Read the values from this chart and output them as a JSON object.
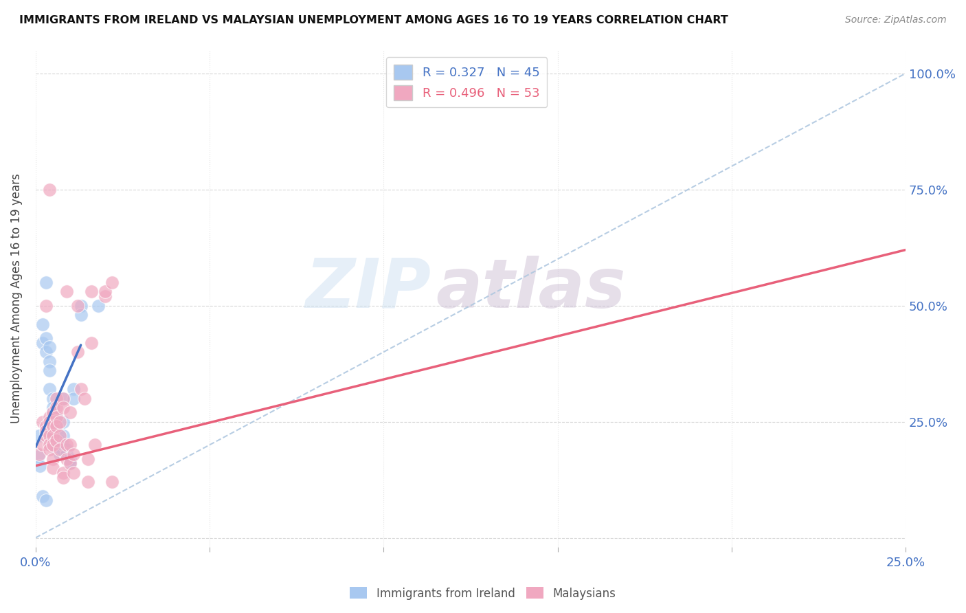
{
  "title": "IMMIGRANTS FROM IRELAND VS MALAYSIAN UNEMPLOYMENT AMONG AGES 16 TO 19 YEARS CORRELATION CHART",
  "source": "Source: ZipAtlas.com",
  "ylabel": "Unemployment Among Ages 16 to 19 years",
  "xlim": [
    0.0,
    0.25
  ],
  "ylim": [
    -0.02,
    1.05
  ],
  "xticks": [
    0.0,
    0.05,
    0.1,
    0.15,
    0.2,
    0.25
  ],
  "yticks": [
    0.0,
    0.25,
    0.5,
    0.75,
    1.0
  ],
  "xtick_labels": [
    "0.0%",
    "",
    "",
    "",
    "",
    "25.0%"
  ],
  "ytick_labels_right": [
    "",
    "25.0%",
    "50.0%",
    "75.0%",
    "100.0%"
  ],
  "blue_R": "0.327",
  "blue_N": "45",
  "pink_R": "0.496",
  "pink_N": "53",
  "blue_color": "#a8c8f0",
  "pink_color": "#f0a8c0",
  "blue_line_color": "#4472c4",
  "pink_line_color": "#e8607a",
  "dashed_line_color": "#b0c8e0",
  "blue_scatter": [
    [
      0.0008,
      0.175
    ],
    [
      0.001,
      0.22
    ],
    [
      0.0012,
      0.155
    ],
    [
      0.002,
      0.42
    ],
    [
      0.002,
      0.46
    ],
    [
      0.002,
      0.09
    ],
    [
      0.003,
      0.55
    ],
    [
      0.003,
      0.43
    ],
    [
      0.003,
      0.4
    ],
    [
      0.003,
      0.08
    ],
    [
      0.004,
      0.41
    ],
    [
      0.004,
      0.38
    ],
    [
      0.004,
      0.36
    ],
    [
      0.004,
      0.32
    ],
    [
      0.005,
      0.3
    ],
    [
      0.005,
      0.28
    ],
    [
      0.005,
      0.27
    ],
    [
      0.005,
      0.25
    ],
    [
      0.005,
      0.24
    ],
    [
      0.005,
      0.23
    ],
    [
      0.006,
      0.26
    ],
    [
      0.006,
      0.25
    ],
    [
      0.006,
      0.23
    ],
    [
      0.006,
      0.22
    ],
    [
      0.006,
      0.21
    ],
    [
      0.006,
      0.2
    ],
    [
      0.006,
      0.19
    ],
    [
      0.007,
      0.22
    ],
    [
      0.007,
      0.21
    ],
    [
      0.007,
      0.2
    ],
    [
      0.007,
      0.19
    ],
    [
      0.007,
      0.18
    ],
    [
      0.008,
      0.3
    ],
    [
      0.008,
      0.25
    ],
    [
      0.008,
      0.22
    ],
    [
      0.008,
      0.2
    ],
    [
      0.009,
      0.19
    ],
    [
      0.009,
      0.18
    ],
    [
      0.01,
      0.17
    ],
    [
      0.01,
      0.16
    ],
    [
      0.011,
      0.32
    ],
    [
      0.011,
      0.3
    ],
    [
      0.013,
      0.5
    ],
    [
      0.013,
      0.48
    ],
    [
      0.018,
      0.5
    ]
  ],
  "pink_scatter": [
    [
      0.001,
      0.18
    ],
    [
      0.002,
      0.2
    ],
    [
      0.002,
      0.25
    ],
    [
      0.003,
      0.22
    ],
    [
      0.003,
      0.24
    ],
    [
      0.003,
      0.23
    ],
    [
      0.003,
      0.5
    ],
    [
      0.004,
      0.26
    ],
    [
      0.004,
      0.25
    ],
    [
      0.004,
      0.22
    ],
    [
      0.004,
      0.2
    ],
    [
      0.004,
      0.19
    ],
    [
      0.004,
      0.75
    ],
    [
      0.005,
      0.27
    ],
    [
      0.005,
      0.25
    ],
    [
      0.005,
      0.24
    ],
    [
      0.005,
      0.22
    ],
    [
      0.005,
      0.2
    ],
    [
      0.005,
      0.17
    ],
    [
      0.005,
      0.15
    ],
    [
      0.006,
      0.3
    ],
    [
      0.006,
      0.28
    ],
    [
      0.006,
      0.26
    ],
    [
      0.006,
      0.24
    ],
    [
      0.006,
      0.21
    ],
    [
      0.007,
      0.25
    ],
    [
      0.007,
      0.22
    ],
    [
      0.007,
      0.19
    ],
    [
      0.008,
      0.3
    ],
    [
      0.008,
      0.28
    ],
    [
      0.008,
      0.14
    ],
    [
      0.008,
      0.13
    ],
    [
      0.009,
      0.53
    ],
    [
      0.009,
      0.2
    ],
    [
      0.009,
      0.17
    ],
    [
      0.01,
      0.27
    ],
    [
      0.01,
      0.2
    ],
    [
      0.01,
      0.16
    ],
    [
      0.011,
      0.18
    ],
    [
      0.011,
      0.14
    ],
    [
      0.012,
      0.5
    ],
    [
      0.012,
      0.4
    ],
    [
      0.013,
      0.32
    ],
    [
      0.014,
      0.3
    ],
    [
      0.015,
      0.17
    ],
    [
      0.015,
      0.12
    ],
    [
      0.016,
      0.53
    ],
    [
      0.016,
      0.42
    ],
    [
      0.017,
      0.2
    ],
    [
      0.02,
      0.52
    ],
    [
      0.02,
      0.53
    ],
    [
      0.022,
      0.12
    ],
    [
      0.022,
      0.55
    ]
  ],
  "blue_trend_x": [
    0.0,
    0.013
  ],
  "blue_trend_y": [
    0.195,
    0.415
  ],
  "pink_trend_x": [
    0.0,
    0.25
  ],
  "pink_trend_y": [
    0.155,
    0.62
  ],
  "dashed_trend_x": [
    0.0,
    0.25
  ],
  "dashed_trend_y": [
    0.0,
    1.0
  ],
  "background_color": "#ffffff",
  "plot_bg_color": "#ffffff",
  "grid_color": "#cccccc",
  "watermark_text": "ZIP",
  "watermark_text2": "atlas"
}
